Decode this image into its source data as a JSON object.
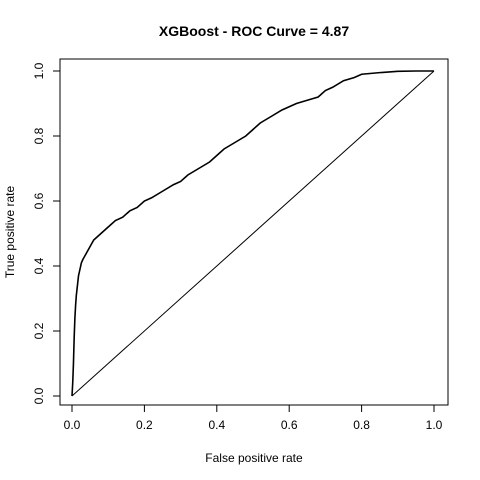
{
  "chart_data": {
    "type": "line",
    "title": "XGBoost - ROC Curve =  4.87",
    "xlabel": "False positive rate",
    "ylabel": "True positive rate",
    "xlim": [
      0,
      1
    ],
    "ylim": [
      0,
      1
    ],
    "x_ticks": [
      "0.0",
      "0.2",
      "0.4",
      "0.6",
      "0.8",
      "1.0"
    ],
    "y_ticks": [
      "0.0",
      "0.2",
      "0.4",
      "0.6",
      "0.8",
      "1.0"
    ],
    "grid": false,
    "legend": "none",
    "series": [
      {
        "x": [
          0,
          0.002,
          0.004,
          0.006,
          0.008,
          0.01,
          0.012,
          0.015,
          0.018,
          0.022,
          0.026,
          0.03,
          0.035,
          0.04,
          0.05,
          0.06,
          0.07,
          0.08,
          0.1,
          0.12,
          0.14,
          0.16,
          0.18,
          0.2,
          0.22,
          0.25,
          0.28,
          0.3,
          0.32,
          0.35,
          0.38,
          0.4,
          0.42,
          0.45,
          0.48,
          0.5,
          0.52,
          0.55,
          0.58,
          0.6,
          0.62,
          0.65,
          0.68,
          0.7,
          0.72,
          0.75,
          0.78,
          0.8,
          0.85,
          0.9,
          0.95,
          1.0
        ],
        "y": [
          0,
          0.04,
          0.1,
          0.18,
          0.24,
          0.28,
          0.31,
          0.34,
          0.37,
          0.39,
          0.41,
          0.42,
          0.43,
          0.44,
          0.46,
          0.48,
          0.49,
          0.5,
          0.52,
          0.54,
          0.55,
          0.57,
          0.58,
          0.6,
          0.61,
          0.63,
          0.65,
          0.66,
          0.68,
          0.7,
          0.72,
          0.74,
          0.76,
          0.78,
          0.8,
          0.82,
          0.84,
          0.86,
          0.88,
          0.89,
          0.9,
          0.91,
          0.92,
          0.94,
          0.95,
          0.97,
          0.98,
          0.99,
          0.995,
          0.999,
          1.0,
          1.0
        ],
        "color": "#000000"
      },
      {
        "x": [
          0,
          1
        ],
        "y": [
          0,
          1
        ],
        "color": "#000000"
      }
    ]
  }
}
